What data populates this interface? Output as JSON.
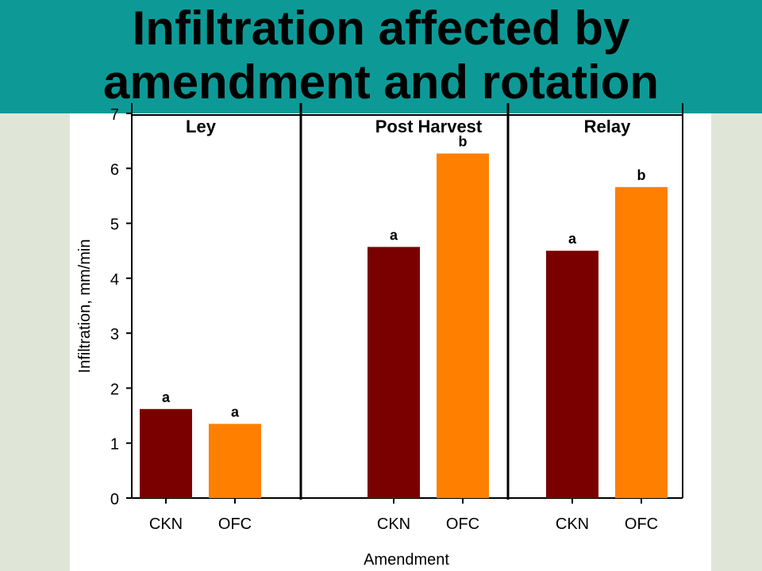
{
  "title_line1": "Infiltration affected by",
  "title_line2": "amendment and rotation",
  "colors": {
    "header_band": "#0d9a97",
    "background": "#dfe6d8",
    "ckn": "#7a0000",
    "ofc": "#ff8000"
  },
  "chart_data": {
    "type": "bar",
    "xlabel": "Amendment",
    "ylabel": "Infiltration, mm/min",
    "ylim": [
      0,
      7
    ],
    "yticks": [
      0,
      1,
      2,
      3,
      4,
      5,
      6,
      7
    ],
    "categories": [
      "CKN",
      "OFC"
    ],
    "panels": [
      {
        "name": "Ley",
        "values": [
          1.62,
          1.35
        ],
        "letters": [
          "a",
          "a"
        ]
      },
      {
        "name": "Post Harvest",
        "values": [
          4.57,
          6.27
        ],
        "letters": [
          "a",
          "b"
        ]
      },
      {
        "name": "Relay",
        "values": [
          4.5,
          5.66
        ],
        "letters": [
          "a",
          "b"
        ]
      }
    ],
    "grid": false,
    "legend": "none"
  }
}
